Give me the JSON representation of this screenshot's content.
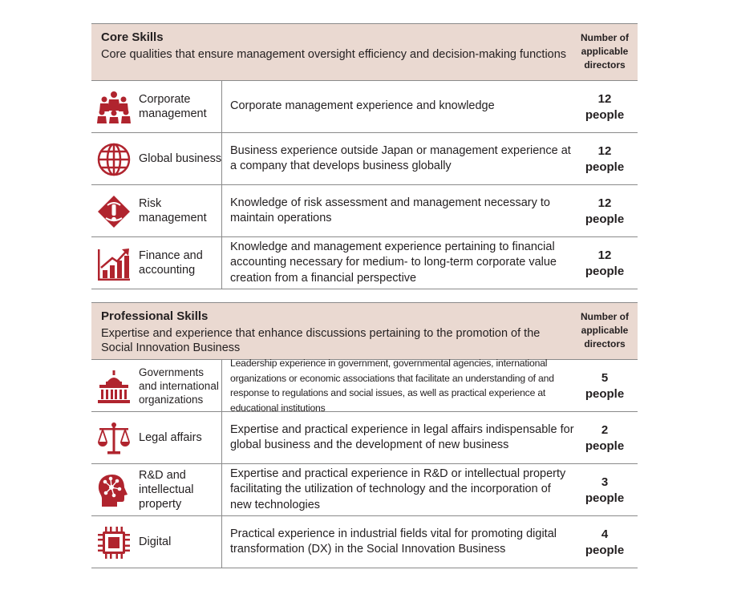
{
  "core": {
    "title": "Core Skills",
    "description": "Core qualities that ensure management oversight efficiency and decision-making functions",
    "column_header": "Number of applicable directors",
    "rows": [
      {
        "name": "Corporate management",
        "icon": "people-group-icon",
        "description": "Corporate management experience and knowledge",
        "count": "12",
        "unit": "people"
      },
      {
        "name": "Global business",
        "icon": "globe-icon",
        "description": "Business experience outside Japan or management experience at a company that develops business globally",
        "count": "12",
        "unit": "people"
      },
      {
        "name": "Risk management",
        "icon": "warning-diamond-icon",
        "description": "Knowledge of risk assessment and management necessary to maintain operations",
        "count": "12",
        "unit": "people"
      },
      {
        "name": "Finance and accounting",
        "icon": "growth-chart-icon",
        "description": "Knowledge and management experience pertaining to financial accounting necessary for medium- to long-term corporate value creation from a financial perspective",
        "count": "12",
        "unit": "people"
      }
    ]
  },
  "professional": {
    "title": "Professional Skills",
    "description": "Expertise and experience that enhance discussions pertaining to the promotion of the Social Innovation Business",
    "column_header": "Number of applicable directors",
    "rows": [
      {
        "name": "Governments and international organizations",
        "icon": "government-building-icon",
        "description": "Leadership experience in government, governmental agencies, international organizations or economic associations that facilitate an understanding of and response to regulations and social issues, as well as practical experience at educational institutions",
        "count": "5",
        "unit": "people"
      },
      {
        "name": "Legal affairs",
        "icon": "scales-icon",
        "description": "Expertise and practical experience in legal affairs indispensable for global business and the development of new business",
        "count": "2",
        "unit": "people"
      },
      {
        "name": "R&D and intellectual property",
        "icon": "brain-head-icon",
        "description": "Expertise and practical experience in R&D or intellectual property facilitating the utilization of technology and the incorporation of new technologies",
        "count": "3",
        "unit": "people"
      },
      {
        "name": "Digital",
        "icon": "chip-icon",
        "description": "Practical experience in industrial fields vital for promoting digital transformation (DX) in the Social Innovation Business",
        "count": "4",
        "unit": "people"
      }
    ]
  },
  "colors": {
    "accent": "#b0242e",
    "header_bg": "#ead9d1",
    "rule": "#8a8a8a"
  }
}
